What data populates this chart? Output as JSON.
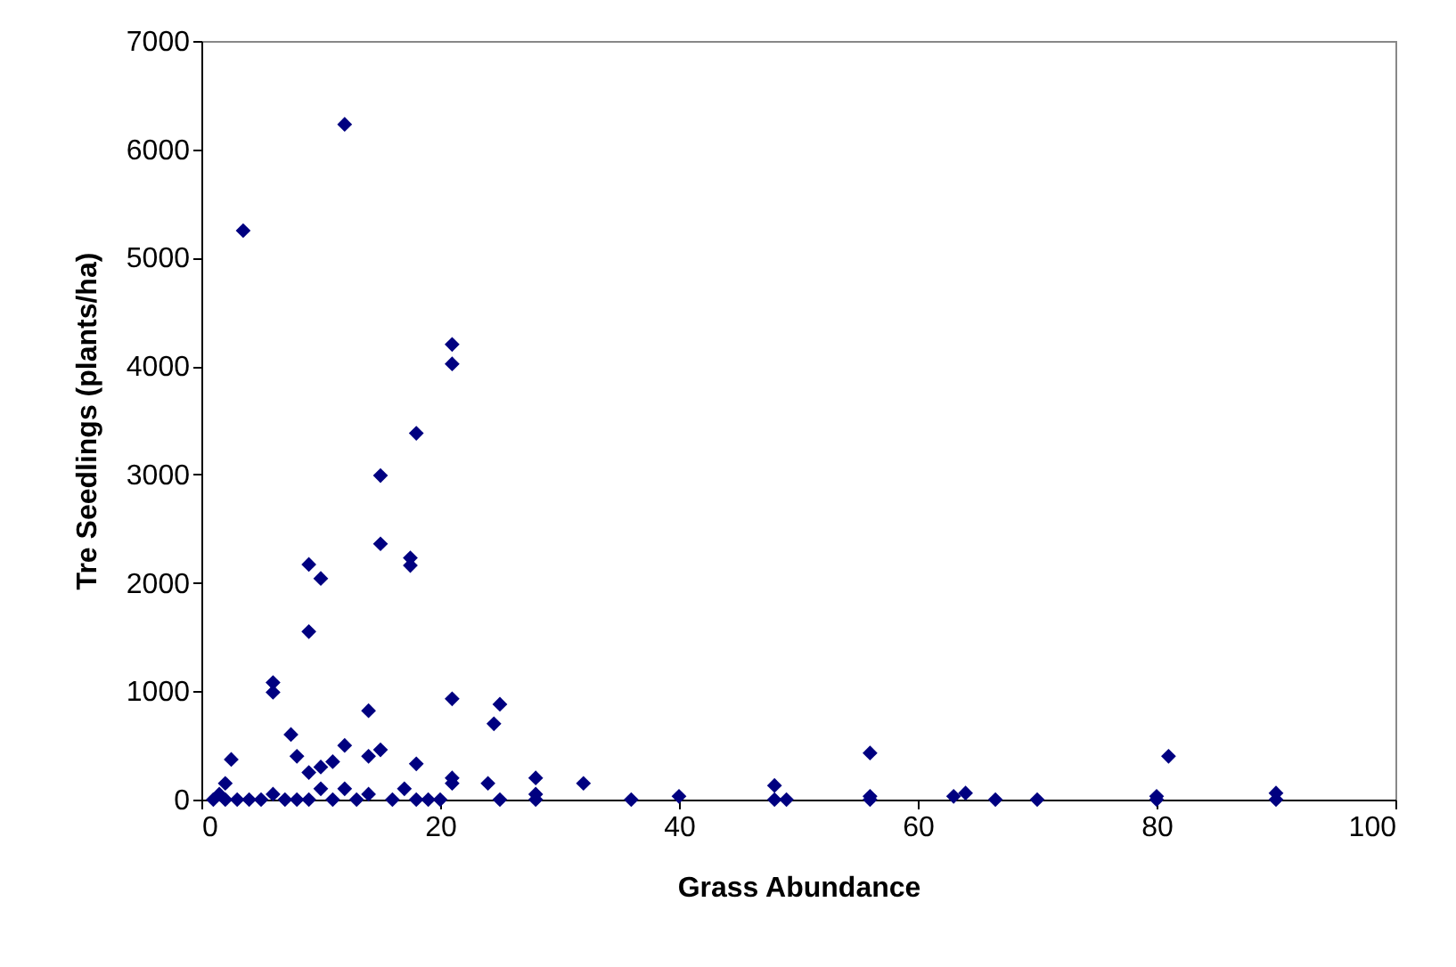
{
  "chart_data": {
    "type": "scatter",
    "xlabel": "Grass Abundance",
    "ylabel": "Tre Seedlings (plants/ha)",
    "x": [
      3.5,
      12,
      21,
      21,
      18,
      15,
      15,
      17.5,
      17.5,
      9,
      10,
      9,
      6,
      6,
      14,
      21,
      25,
      24.5,
      7.5,
      2.5,
      12,
      15,
      14,
      8,
      18,
      10,
      9,
      11,
      1,
      1.5,
      2,
      2,
      3,
      4,
      5,
      6,
      7,
      8,
      9,
      10,
      11,
      12,
      13,
      14,
      16,
      17,
      18,
      19,
      20,
      21,
      21,
      24,
      25,
      28,
      28,
      28,
      32,
      36,
      40,
      48,
      48,
      49,
      56,
      56,
      56,
      63,
      64,
      66.5,
      70,
      80,
      80,
      81,
      90,
      90
    ],
    "series": [
      {
        "color": "#000080",
        "values": [
          5250,
          6230,
          4200,
          4020,
          3380,
          2990,
          2360,
          2230,
          2160,
          2170,
          2040,
          1550,
          1080,
          990,
          820,
          930,
          880,
          700,
          600,
          370,
          500,
          460,
          400,
          400,
          330,
          300,
          250,
          350,
          0,
          50,
          150,
          0,
          0,
          0,
          0,
          50,
          0,
          0,
          0,
          100,
          0,
          100,
          0,
          50,
          0,
          100,
          0,
          0,
          0,
          150,
          200,
          150,
          0,
          200,
          50,
          0,
          150,
          0,
          30,
          130,
          0,
          0,
          430,
          30,
          0,
          30,
          60,
          0,
          0,
          30,
          0,
          400,
          60,
          0
        ]
      }
    ],
    "xlim": [
      0,
      100
    ],
    "xticks": [
      0,
      20,
      40,
      60,
      80,
      100
    ],
    "ylim": [
      0,
      7000
    ],
    "yticks": [
      0,
      1000,
      2000,
      3000,
      4000,
      5000,
      6000,
      7000
    ],
    "marker": "diamond",
    "grid": false,
    "legend": false
  }
}
